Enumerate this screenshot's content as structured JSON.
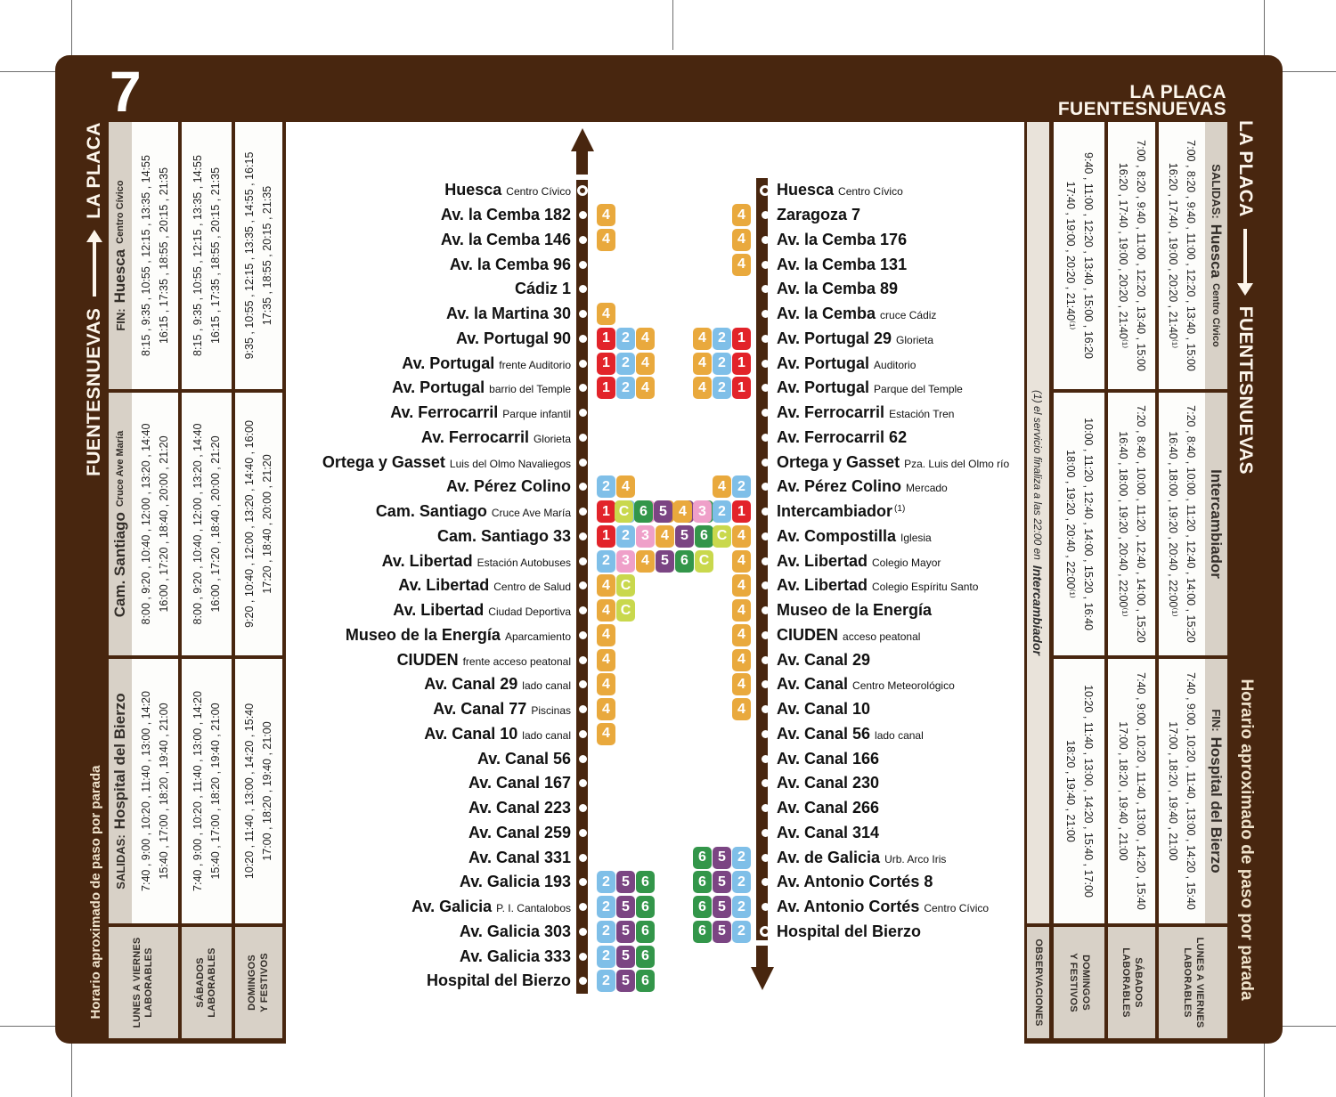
{
  "page": {
    "route_number": "7",
    "brown": "#48260f",
    "tan": "#d8d1c7",
    "note_bg": "#e9e3da"
  },
  "header": {
    "line1": "LA PLACA",
    "line2": "FUENTESNUEVAS"
  },
  "edges": {
    "left_title": {
      "from": "FUENTESNUEVAS",
      "to": "LA PLACA"
    },
    "right_title": {
      "from": "LA PLACA",
      "to": "FUENTESNUEVAS"
    },
    "left_footer": "Horario aproximado de paso por parada",
    "right_footer": "Horario aproximado de paso por parada"
  },
  "badge_colors": {
    "1": "#e2232a",
    "2": "#7fbfe8",
    "3": "#efa0c9",
    "4": "#e9a93d",
    "5": "#7b4583",
    "6": "#33964a",
    "C": "#c9d84d"
  },
  "timetable_left": {
    "day_labels": [
      [
        "LUNES A VIERNES",
        "LABORABLES"
      ],
      [
        "SÁBADOS",
        "LABORABLES"
      ],
      [
        "DOMINGOS",
        "Y FESTIVOS"
      ]
    ],
    "sections": [
      {
        "prefix": "FIN:",
        "name": "Huesca",
        "sub": "Centro Cívico",
        "columns": [
          [
            "8:15 , 9:35 , 10:55 , 12:15 , 13:35 , 14:55",
            "16:15 , 17:35 , 18:55 , 20:15 , 21:35"
          ],
          [
            "8:15 , 9:35 , 10:55 , 12:15 , 13:35 , 14:55",
            "16:15 , 17:35 , 18:55 , 20:15 , 21:35"
          ],
          [
            "9:35 , 10:55 , 12:15 , 13:35 , 14:55 , 16:15",
            "17:35 , 18:55 , 20:15 , 21:35"
          ]
        ]
      },
      {
        "prefix": "",
        "name": "Cam. Santiago",
        "sub": "Cruce Ave María",
        "columns": [
          [
            "8:00 , 9:20 , 10:40 , 12:00 , 13:20 , 14:40",
            "16:00 , 17:20 , 18:40 , 20:00 , 21:20"
          ],
          [
            "8:00 , 9:20 , 10:40 , 12:00 , 13:20 , 14:40",
            "16:00 , 17:20 , 18:40 , 20:00 , 21:20"
          ],
          [
            "9:20 , 10:40 , 12:00 , 13:20 , 14:40 , 16:00",
            "17:20 , 18:40 , 20:00 , 21:20"
          ]
        ]
      },
      {
        "prefix": "SALIDAS:",
        "name": "Hospital del Bierzo",
        "sub": "",
        "columns": [
          [
            "7:40 , 9:00 , 10:20 , 11:40 , 13:00 , 14:20",
            "15:40 , 17:00 , 18:20 , 19:40 , 21:00"
          ],
          [
            "7:40 , 9:00 , 10:20 , 11:40 , 13:00 , 14:20",
            "15:40 , 17:00 , 18:20 , 19:40 , 21:00"
          ],
          [
            "10:20 , 11:40 , 13:00 , 14:20 , 15:40",
            "17:00 , 18:20 , 19:40 , 21:00"
          ]
        ]
      }
    ]
  },
  "timetable_right": {
    "day_labels": [
      [
        "DOMINGOS",
        "Y FESTIVOS"
      ],
      [
        "SÁBADOS",
        "LABORABLES"
      ],
      [
        "LUNES A VIERNES",
        "LABORABLES"
      ]
    ],
    "observations_label": "OBSERVACIONES",
    "note": {
      "prefix": "(1) el servicio finaliza a las 22:00 en",
      "place": "Intercambiador"
    },
    "sections": [
      {
        "prefix": "SALIDAS:",
        "name": "Huesca",
        "sub": "Centro Cívico",
        "columns": [
          [
            "9:40 , 11:00 , 12:20 , 13:40 , 15:00 , 16:20",
            "17:40 , 19:00 , 20:20 , 21:40⁽¹⁾"
          ],
          [
            "7:00 , 8:20 , 9:40 , 11:00 , 12:20 , 13:40 , 15:00",
            "16:20 , 17:40 , 19:00 , 20:20 , 21:40⁽¹⁾"
          ],
          [
            "7:00 , 8:20 , 9:40 , 11:00 , 12:20 , 13:40 , 15:00",
            "16:20 , 17:40 , 19:00 , 20:20 , 21:40⁽¹⁾"
          ]
        ]
      },
      {
        "prefix": "",
        "name": "Intercambiador",
        "sub": "",
        "columns": [
          [
            "10:00 , 11:20 , 12:40 , 14:00 , 15:20 , 16:40",
            "18:00 , 19:20 , 20:40 , 22:00⁽¹⁾"
          ],
          [
            "7:20 , 8:40 , 10:00 , 11:20 , 12:40 , 14:00 , 15:20",
            "16:40 , 18:00 , 19:20 , 20:40 , 22:00⁽¹⁾"
          ],
          [
            "7:20 , 8:40 , 10:00 , 11:20 , 12:40 , 14:00 , 15:20",
            "16:40 , 18:00 , 19:20 , 20:40 , 22:00⁽¹⁾"
          ]
        ]
      },
      {
        "prefix": "FIN:",
        "name": "Hospital del Bierzo",
        "sub": "",
        "columns": [
          [
            "10:20 , 11:40 , 13:00 , 14:20 , 15:40 , 17:00",
            "18:20 , 19:40 , 21:00"
          ],
          [
            "7:40 , 9:00 , 10:20 , 11:40 , 13:00 , 14:20 , 15:40",
            "17:00 , 18:20 , 19:40 , 21:00"
          ],
          [
            "7:40 , 9:00 , 10:20 , 11:40 , 13:00 , 14:20 , 15:40",
            "17:00 , 18:20 , 19:40 , 21:00"
          ]
        ]
      }
    ]
  },
  "route_left": {
    "stops": [
      {
        "name": "Huesca",
        "sub": "Centro Cívico",
        "badges": [],
        "terminal": true
      },
      {
        "name": "Av. la Cemba 182",
        "sub": "",
        "badges": [
          "4"
        ]
      },
      {
        "name": "Av. la Cemba 146",
        "sub": "",
        "badges": [
          "4"
        ]
      },
      {
        "name": "Av. la Cemba 96",
        "sub": "",
        "badges": []
      },
      {
        "name": "Cádiz 1",
        "sub": "",
        "badges": []
      },
      {
        "name": "Av. la Martina 30",
        "sub": "",
        "badges": [
          "4"
        ]
      },
      {
        "name": "Av. Portugal 90",
        "sub": "",
        "badges": [
          "1",
          "2",
          "4"
        ]
      },
      {
        "name": "Av. Portugal",
        "sub": "frente Auditorio",
        "badges": [
          "1",
          "2",
          "4"
        ]
      },
      {
        "name": "Av. Portugal",
        "sub": "barrio del Temple",
        "badges": [
          "1",
          "2",
          "4"
        ]
      },
      {
        "name": "Av. Ferrocarril",
        "sub": "Parque infantil",
        "badges": []
      },
      {
        "name": "Av. Ferrocarril",
        "sub": "Glorieta",
        "badges": []
      },
      {
        "name": "Ortega y Gasset",
        "sub": "Luis del Olmo Navaliegos",
        "badges": []
      },
      {
        "name": "Av. Pérez Colino",
        "sub": "",
        "badges": [
          "2",
          "4"
        ]
      },
      {
        "name": "Cam. Santiago",
        "sub": "Cruce Ave María",
        "badges": [
          "1",
          "2",
          "3",
          "4",
          "5",
          "6"
        ]
      },
      {
        "name": "Cam. Santiago 33",
        "sub": "",
        "badges": [
          "1",
          "2",
          "3",
          "4",
          "5",
          "6"
        ]
      },
      {
        "name": "Av. Libertad",
        "sub": "Estación Autobuses",
        "badges": [
          "2",
          "3",
          "4",
          "5",
          "6",
          "C"
        ]
      },
      {
        "name": "Av. Libertad",
        "sub": "Centro de Salud",
        "badges": [
          "4",
          "C"
        ]
      },
      {
        "name": "Av. Libertad",
        "sub": "Ciudad Deportiva",
        "badges": [
          "4",
          "C"
        ]
      },
      {
        "name": "Museo de la Energía",
        "sub": "Aparcamiento",
        "badges": [
          "4"
        ]
      },
      {
        "name": "CIUDEN",
        "sub": "frente acceso peatonal",
        "badges": [
          "4"
        ]
      },
      {
        "name": "Av. Canal 29",
        "sub": "lado canal",
        "badges": [
          "4"
        ]
      },
      {
        "name": "Av. Canal 77",
        "sub": "Piscinas",
        "badges": [
          "4"
        ]
      },
      {
        "name": "Av. Canal 10",
        "sub": "lado canal",
        "badges": [
          "4"
        ]
      },
      {
        "name": "Av. Canal 56",
        "sub": "",
        "badges": []
      },
      {
        "name": "Av. Canal 167",
        "sub": "",
        "badges": []
      },
      {
        "name": "Av. Canal 223",
        "sub": "",
        "badges": []
      },
      {
        "name": "Av. Canal 259",
        "sub": "",
        "badges": []
      },
      {
        "name": "Av. Canal 331",
        "sub": "",
        "badges": []
      },
      {
        "name": "Av. Galicia 193",
        "sub": "",
        "badges": [
          "2",
          "5",
          "6"
        ]
      },
      {
        "name": "Av. Galicia",
        "sub": "P. I. Cantalobos",
        "badges": [
          "2",
          "5",
          "6"
        ]
      },
      {
        "name": "Av. Galicia 303",
        "sub": "",
        "badges": [
          "2",
          "5",
          "6"
        ]
      },
      {
        "name": "Av. Galicia 333",
        "sub": "",
        "badges": [
          "2",
          "5",
          "6"
        ]
      },
      {
        "name": "Hospital del Bierzo",
        "sub": "",
        "badges": [
          "2",
          "5",
          "6"
        ]
      }
    ]
  },
  "route_right": {
    "stops": [
      {
        "name": "Huesca",
        "sub": "Centro Cívico",
        "badges": [],
        "terminal": true
      },
      {
        "name": "Zaragoza 7",
        "sub": "",
        "badges": [
          "4"
        ]
      },
      {
        "name": "Av. la Cemba 176",
        "sub": "",
        "badges": [
          "4"
        ]
      },
      {
        "name": "Av. la Cemba 131",
        "sub": "",
        "badges": [
          "4"
        ]
      },
      {
        "name": "Av. la Cemba 89",
        "sub": "",
        "badges": []
      },
      {
        "name": "Av. la Cemba",
        "sub": "cruce Cádiz",
        "badges": []
      },
      {
        "name": "Av. Portugal 29",
        "sub": "Glorieta",
        "badges": [
          "4",
          "2",
          "1"
        ]
      },
      {
        "name": "Av. Portugal",
        "sub": "Auditorio",
        "badges": [
          "4",
          "2",
          "1"
        ]
      },
      {
        "name": "Av. Portugal",
        "sub": "Parque del Temple",
        "badges": [
          "4",
          "2",
          "1"
        ]
      },
      {
        "name": "Av. Ferrocarril",
        "sub": "Estación Tren",
        "badges": []
      },
      {
        "name": "Av. Ferrocarril 62",
        "sub": "",
        "badges": []
      },
      {
        "name": "Ortega y Gasset",
        "sub": "Pza. Luis del Olmo río",
        "badges": []
      },
      {
        "name": "Av. Pérez Colino",
        "sub": "Mercado",
        "badges": [
          "4",
          "2"
        ]
      },
      {
        "name": "Intercambiador",
        "sub": "(1)",
        "sup": true,
        "badges": [
          "C",
          "6",
          "5",
          "4",
          "3",
          "2",
          "1"
        ]
      },
      {
        "name": "Av. Compostilla",
        "sub": "Iglesia",
        "badges": [
          "C",
          "4"
        ]
      },
      {
        "name": "Av. Libertad",
        "sub": "Colegio Mayor",
        "badges": [
          "4"
        ]
      },
      {
        "name": "Av. Libertad",
        "sub": "Colegio Espíritu Santo",
        "badges": [
          "4"
        ]
      },
      {
        "name": "Museo de la Energía",
        "sub": "",
        "badges": [
          "4"
        ]
      },
      {
        "name": "CIUDEN",
        "sub": "acceso peatonal",
        "badges": [
          "4"
        ]
      },
      {
        "name": "Av. Canal 29",
        "sub": "",
        "badges": [
          "4"
        ]
      },
      {
        "name": "Av. Canal",
        "sub": "Centro Meteorológico",
        "badges": [
          "4"
        ]
      },
      {
        "name": "Av. Canal 10",
        "sub": "",
        "badges": [
          "4"
        ]
      },
      {
        "name": "Av. Canal 56",
        "sub": "lado canal",
        "badges": []
      },
      {
        "name": "Av. Canal 166",
        "sub": "",
        "badges": []
      },
      {
        "name": "Av. Canal 230",
        "sub": "",
        "badges": []
      },
      {
        "name": "Av. Canal 266",
        "sub": "",
        "badges": []
      },
      {
        "name": "Av. Canal 314",
        "sub": "",
        "badges": []
      },
      {
        "name": "Av. de Galicia",
        "sub": "Urb. Arco Iris",
        "badges": [
          "6",
          "5",
          "2"
        ]
      },
      {
        "name": "Av. Antonio Cortés 8",
        "sub": "",
        "badges": [
          "6",
          "5",
          "2"
        ]
      },
      {
        "name": "Av. Antonio Cortés",
        "sub": "Centro Cívico",
        "badges": [
          "6",
          "5",
          "2"
        ]
      },
      {
        "name": "Hospital del Bierzo",
        "sub": "",
        "badges": [
          "6",
          "5",
          "2"
        ],
        "terminal": true
      }
    ]
  }
}
